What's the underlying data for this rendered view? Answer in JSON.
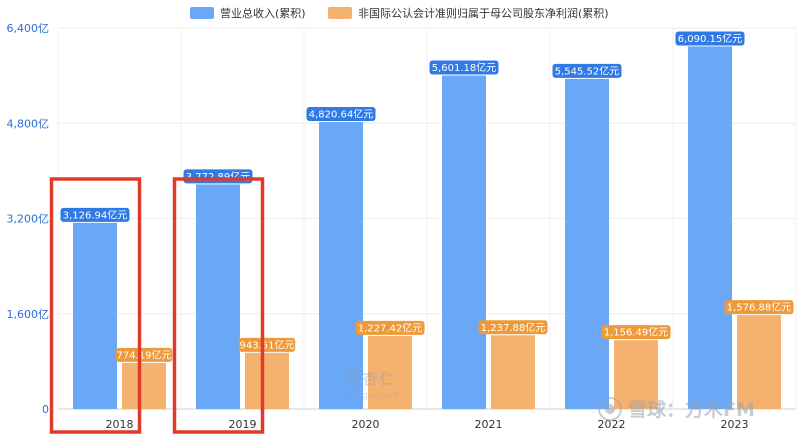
{
  "chart_data": {
    "type": "bar",
    "categories": [
      "2018",
      "2019",
      "2020",
      "2021",
      "2022",
      "2023"
    ],
    "series": [
      {
        "name": "营业总收入(累积)",
        "values": [
          3126.94,
          3772.89,
          4820.64,
          5601.18,
          5545.52,
          6090.15
        ],
        "labels": [
          "3,126.94亿元",
          "3,772.89亿元",
          "4,820.64亿元",
          "5,601.18亿元",
          "5,545.52亿元",
          "6,090.15亿元"
        ],
        "color": "#6aa8f7",
        "label_color": "#2f7ae5"
      },
      {
        "name": "非国际公认会计准则归属于母公司股东净利润(累积)",
        "values": [
          774.19,
          943.51,
          1227.42,
          1237.88,
          1156.49,
          1576.88
        ],
        "labels": [
          "774.19亿元",
          "943.51亿元",
          "1,227.42亿元",
          "1,237.88亿元",
          "1,156.49亿元",
          "1,576.88亿元"
        ],
        "color": "#f4b26e",
        "label_color": "#ee9a3a"
      }
    ],
    "y_ticks": [
      "0",
      "1,600亿",
      "3,200亿",
      "4,800亿",
      "6,400亿"
    ],
    "y_tick_values": [
      0,
      1600,
      3200,
      4800,
      6400
    ],
    "ylim": [
      0,
      6400
    ],
    "grid": true,
    "legend_position": "top-center",
    "highlight_boxes": [
      "2018",
      "2019"
    ],
    "highlight_color": "#e03a2a"
  },
  "watermarks": {
    "site_cn": "理杏仁",
    "site_url": "lixinger.com",
    "source": "雪球：方木FM"
  }
}
